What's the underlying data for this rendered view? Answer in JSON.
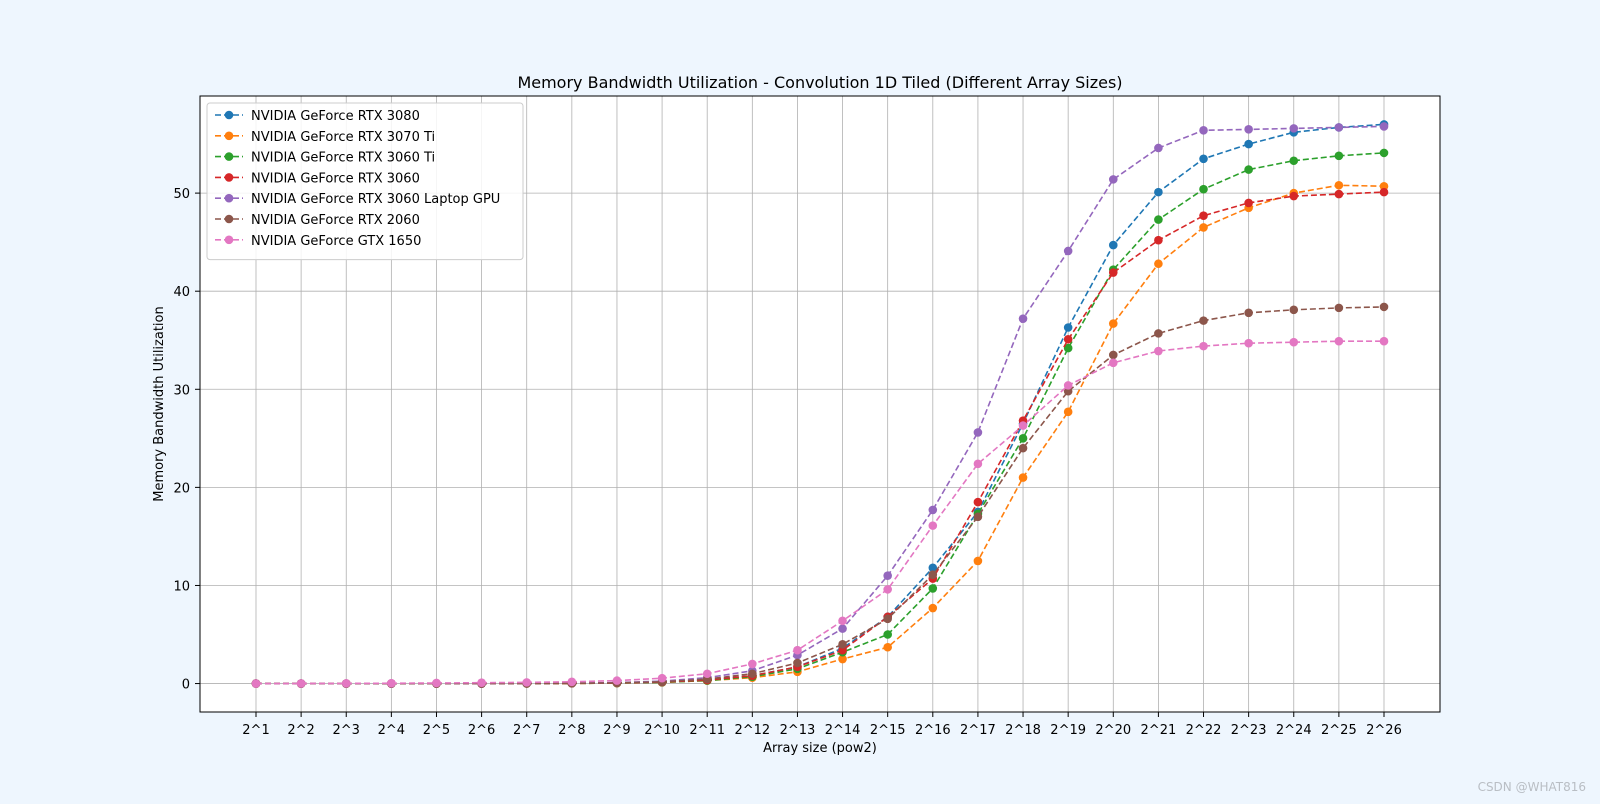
{
  "chart_data": {
    "type": "line",
    "title": "Memory Bandwidth Utilization - Convolution 1D Tiled (Different Array Sizes)",
    "xlabel": "Array size (pow2)",
    "ylabel": "Memory Bandwidth Utilization",
    "categories": [
      "2^1",
      "2^2",
      "2^3",
      "2^4",
      "2^5",
      "2^6",
      "2^7",
      "2^8",
      "2^9",
      "2^10",
      "2^11",
      "2^12",
      "2^13",
      "2^14",
      "2^15",
      "2^16",
      "2^17",
      "2^18",
      "2^19",
      "2^20",
      "2^21",
      "2^22",
      "2^23",
      "2^24",
      "2^25",
      "2^26"
    ],
    "ylim": [
      -2.9,
      59.9
    ],
    "yticks": [
      0,
      10,
      20,
      30,
      40,
      50
    ],
    "grid": true,
    "legend_position": "upper-left",
    "marker": "circle",
    "line_style": "dashed",
    "series": [
      {
        "name": "NVIDIA GeForce RTX 3080",
        "color": "#1f77b4",
        "values": [
          0,
          0,
          0,
          0,
          0,
          0,
          0.01,
          0.03,
          0.06,
          0.15,
          0.35,
          0.8,
          1.7,
          3.6,
          6.8,
          11.8,
          17.5,
          26.5,
          36.3,
          44.7,
          50.1,
          53.5,
          55,
          56.2,
          56.7,
          57
        ]
      },
      {
        "name": "NVIDIA GeForce RTX 3070 Ti",
        "color": "#ff7f0e",
        "values": [
          0,
          0,
          0,
          0,
          0,
          0,
          0.01,
          0.02,
          0.05,
          0.12,
          0.3,
          0.6,
          1.2,
          2.5,
          3.7,
          7.7,
          12.5,
          21,
          27.7,
          36.7,
          42.8,
          46.5,
          48.5,
          50,
          50.8,
          50.7
        ]
      },
      {
        "name": "NVIDIA GeForce RTX 3060 Ti",
        "color": "#2ca02c",
        "values": [
          0,
          0,
          0,
          0,
          0,
          0,
          0.01,
          0.02,
          0.05,
          0.12,
          0.3,
          0.7,
          1.5,
          3.2,
          5,
          9.7,
          17.3,
          25,
          34.2,
          42.2,
          47.3,
          50.4,
          52.4,
          53.3,
          53.8,
          54.1
        ]
      },
      {
        "name": "NVIDIA GeForce RTX 3060",
        "color": "#d62728",
        "values": [
          0,
          0,
          0,
          0,
          0,
          0,
          0.01,
          0.02,
          0.06,
          0.15,
          0.35,
          0.8,
          1.7,
          3.4,
          6.8,
          10.7,
          18.5,
          26.8,
          35.1,
          41.9,
          45.2,
          47.7,
          49,
          49.7,
          49.9,
          50.1
        ]
      },
      {
        "name": "NVIDIA GeForce RTX 3060 Laptop GPU",
        "color": "#9467bd",
        "values": [
          0,
          0,
          0,
          0,
          0,
          0,
          0.02,
          0.04,
          0.1,
          0.25,
          0.6,
          1.3,
          2.9,
          5.6,
          11,
          17.7,
          25.6,
          37.2,
          44.1,
          51.4,
          54.6,
          56.4,
          56.5,
          56.6,
          56.7,
          56.8
        ]
      },
      {
        "name": "NVIDIA GeForce RTX 2060",
        "color": "#8c564b",
        "values": [
          0,
          0,
          0,
          0,
          0,
          0,
          0.01,
          0.03,
          0.07,
          0.18,
          0.45,
          1,
          2.1,
          4,
          6.6,
          11.1,
          17,
          24,
          29.8,
          33.5,
          35.7,
          37,
          37.8,
          38.1,
          38.3,
          38.4
        ]
      },
      {
        "name": "NVIDIA GeForce GTX 1650",
        "color": "#e377c2",
        "values": [
          0,
          0.01,
          0.02,
          0.04,
          0.06,
          0.09,
          0.12,
          0.18,
          0.3,
          0.55,
          1,
          2,
          3.4,
          6.4,
          9.6,
          16.1,
          22.4,
          26.3,
          30.4,
          32.7,
          33.9,
          34.4,
          34.7,
          34.8,
          34.9,
          34.9
        ]
      }
    ]
  },
  "watermark": "CSDN @WHAT816"
}
